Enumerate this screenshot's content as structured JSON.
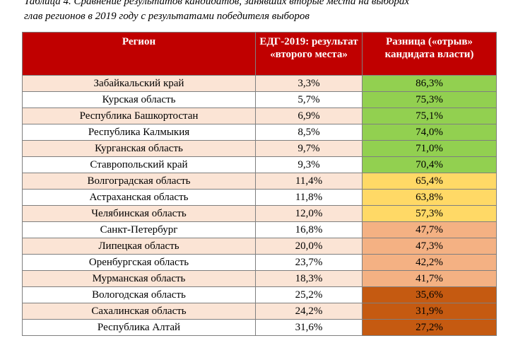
{
  "caption": {
    "line1": "Таблица 4. Сравнение результатов кандидатов, занявших вторые места на выборах",
    "line2": "глав регионов в 2019 году с результатами победителя выборов"
  },
  "headers": {
    "region": "Регион",
    "result": "ЕДГ-2019: результат «второго места»",
    "diff": "Разница («отрыв» кандидата власти)"
  },
  "colors": {
    "header_bg": "#c00000",
    "stripe": "#fbe4d5",
    "green": "#92d050",
    "yellow": "#ffd966",
    "light_orange": "#f4b183",
    "dark_orange": "#c55a11"
  },
  "rows": [
    {
      "region": "Забайкальский край",
      "result": "3,3%",
      "diff": "86,3%",
      "band": "green"
    },
    {
      "region": "Курская область",
      "result": "5,7%",
      "diff": "75,3%",
      "band": "green"
    },
    {
      "region": "Республика Башкортостан",
      "result": "6,9%",
      "diff": "75,1%",
      "band": "green"
    },
    {
      "region": "Республика Калмыкия",
      "result": "8,5%",
      "diff": "74,0%",
      "band": "green"
    },
    {
      "region": "Курганская область",
      "result": "9,7%",
      "diff": "71,0%",
      "band": "green"
    },
    {
      "region": "Ставропольский край",
      "result": "9,3%",
      "diff": "70,4%",
      "band": "green"
    },
    {
      "region": "Волгоградская область",
      "result": "11,4%",
      "diff": "65,4%",
      "band": "yellow"
    },
    {
      "region": "Астраханская область",
      "result": "11,8%",
      "diff": "63,8%",
      "band": "yellow"
    },
    {
      "region": "Челябинская область",
      "result": "12,0%",
      "diff": "57,3%",
      "band": "yellow"
    },
    {
      "region": "Санкт-Петербург",
      "result": "16,8%",
      "diff": "47,7%",
      "band": "light_orange"
    },
    {
      "region": "Липецкая область",
      "result": "20,0%",
      "diff": "47,3%",
      "band": "light_orange"
    },
    {
      "region": "Оренбургская область",
      "result": "23,7%",
      "diff": "42,2%",
      "band": "light_orange"
    },
    {
      "region": "Мурманская область",
      "result": "18,3%",
      "diff": "41,7%",
      "band": "light_orange"
    },
    {
      "region": "Вологодская область",
      "result": "25,2%",
      "diff": "35,6%",
      "band": "dark_orange"
    },
    {
      "region": "Сахалинская область",
      "result": "24,2%",
      "diff": "31,9%",
      "band": "dark_orange"
    },
    {
      "region": "Республика Алтай",
      "result": "31,6%",
      "diff": "27,2%",
      "band": "dark_orange"
    }
  ]
}
